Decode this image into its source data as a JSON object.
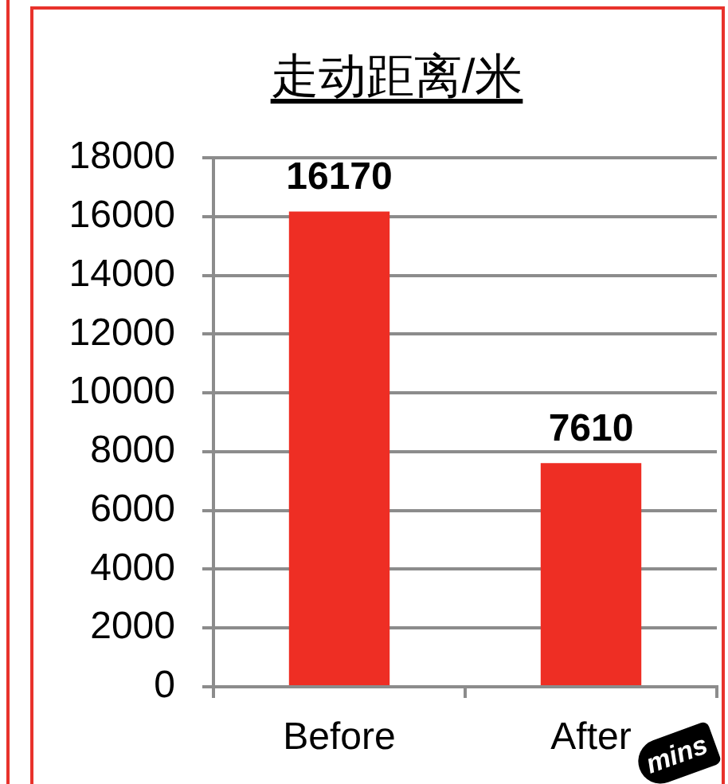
{
  "chart_data": {
    "type": "bar",
    "title": "走动距离/米",
    "categories": [
      "Before",
      "After"
    ],
    "values": [
      16170,
      7610
    ],
    "color": "#ee2e24",
    "ylim": [
      0,
      18000
    ],
    "yticks": [
      0,
      2000,
      4000,
      6000,
      8000,
      10000,
      12000,
      14000,
      16000,
      18000
    ],
    "grid": "y",
    "data_labels": true,
    "annotations": [
      "mins"
    ]
  }
}
